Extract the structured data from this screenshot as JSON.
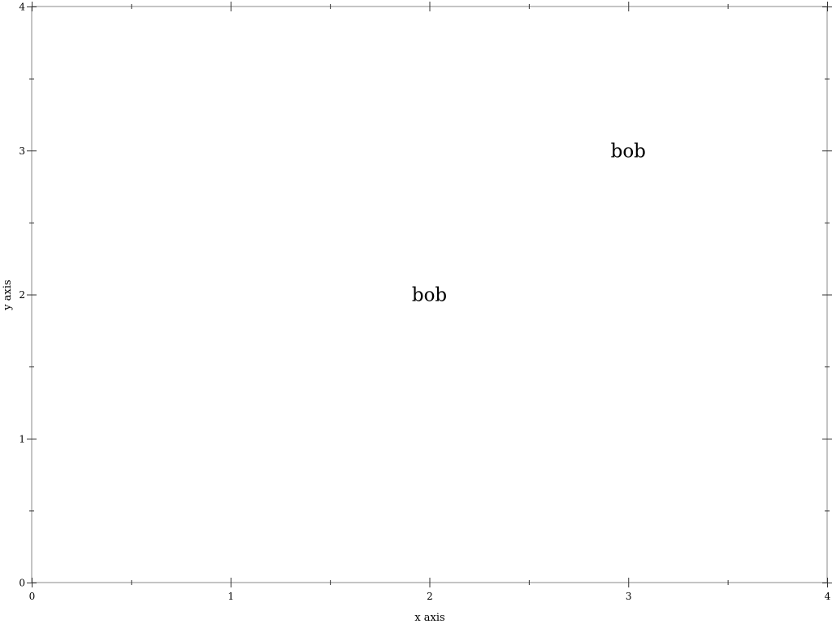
{
  "chart_data": {
    "type": "scatter",
    "title": "",
    "xlabel": "x axis",
    "ylabel": "y axis",
    "xlim": [
      0,
      4
    ],
    "ylim": [
      0,
      4
    ],
    "x_ticks": [
      "0",
      "1",
      "2",
      "3",
      "4"
    ],
    "y_ticks": [
      "0",
      "1",
      "2",
      "3",
      "4"
    ],
    "grid": false,
    "points": [
      {
        "x": 2,
        "y": 2,
        "label": "bob"
      },
      {
        "x": 3,
        "y": 3,
        "label": "bob"
      }
    ]
  }
}
